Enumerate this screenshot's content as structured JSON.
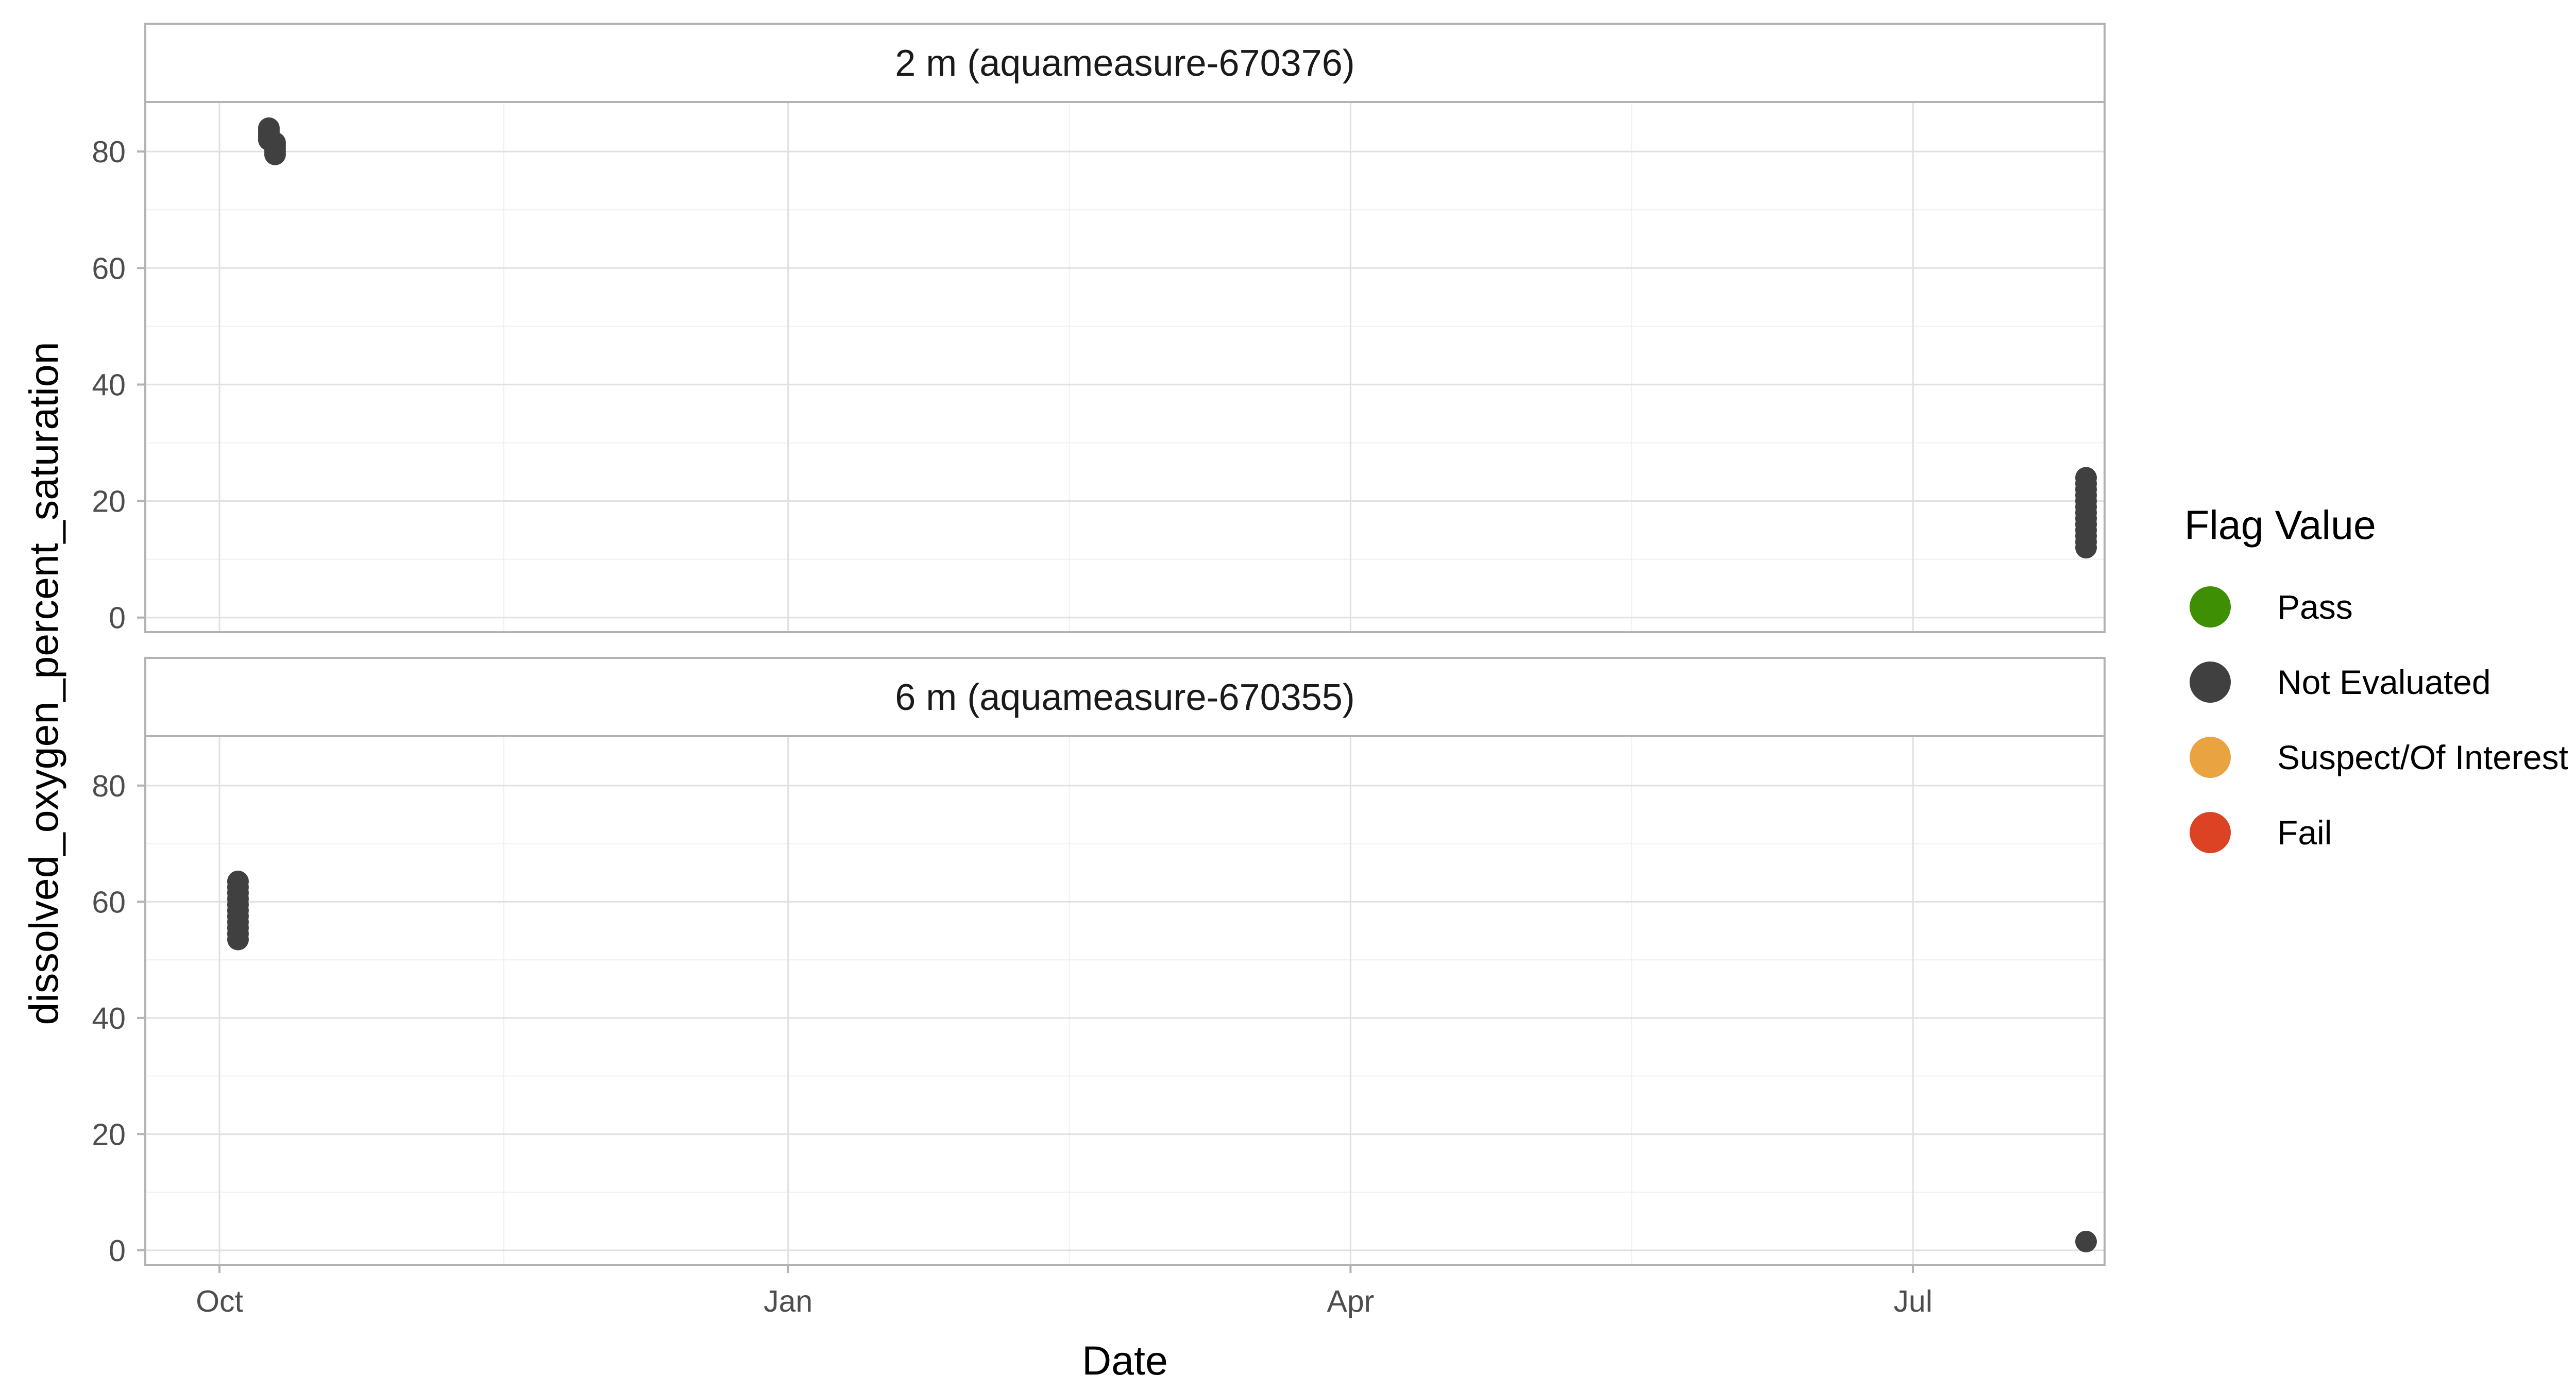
{
  "chart_data": {
    "type": "scatter",
    "xlabel": "Date",
    "ylabel": "dissolved_oxygen_percent_saturation",
    "x_ticks": [
      {
        "label": "Oct",
        "date": "2023-10-01"
      },
      {
        "label": "Jan",
        "date": "2024-01-01"
      },
      {
        "label": "Apr",
        "date": "2024-04-01"
      },
      {
        "label": "Jul",
        "date": "2024-07-01"
      }
    ],
    "xlim": [
      "2023-09-19",
      "2024-08-01"
    ],
    "y_ticks": [
      0,
      20,
      40,
      60,
      80
    ],
    "ylim": [
      -2.5,
      88.5
    ],
    "grid": true,
    "legend": {
      "title": "Flag Value",
      "placement": "right",
      "entries": [
        {
          "label": "Pass",
          "color": "#3f8f05"
        },
        {
          "label": "Not Evaluated",
          "color": "#404040"
        },
        {
          "label": "Suspect/Of Interest",
          "color": "#e9a441"
        },
        {
          "label": "Fail",
          "color": "#db4324"
        }
      ]
    },
    "panels": [
      {
        "label": "2 m (aquameasure-670376)",
        "series": [
          {
            "flag": "Not Evaluated",
            "color": "#404040",
            "points": [
              {
                "x": "2023-10-09",
                "y": 84
              },
              {
                "x": "2023-10-09",
                "y": 83.5
              },
              {
                "x": "2023-10-09",
                "y": 83
              },
              {
                "x": "2023-10-09",
                "y": 82.5
              },
              {
                "x": "2023-10-09",
                "y": 82
              },
              {
                "x": "2023-10-10",
                "y": 81.5
              },
              {
                "x": "2023-10-10",
                "y": 81
              },
              {
                "x": "2023-10-10",
                "y": 80.5
              },
              {
                "x": "2023-10-10",
                "y": 80
              },
              {
                "x": "2023-10-10",
                "y": 79.5
              },
              {
                "x": "2024-07-29",
                "y": 24
              },
              {
                "x": "2024-07-29",
                "y": 23
              },
              {
                "x": "2024-07-29",
                "y": 22
              },
              {
                "x": "2024-07-29",
                "y": 21
              },
              {
                "x": "2024-07-29",
                "y": 20
              },
              {
                "x": "2024-07-29",
                "y": 19
              },
              {
                "x": "2024-07-29",
                "y": 18
              },
              {
                "x": "2024-07-29",
                "y": 17
              },
              {
                "x": "2024-07-29",
                "y": 16
              },
              {
                "x": "2024-07-29",
                "y": 15
              },
              {
                "x": "2024-07-29",
                "y": 14
              },
              {
                "x": "2024-07-29",
                "y": 13
              },
              {
                "x": "2024-07-29",
                "y": 12
              }
            ]
          }
        ]
      },
      {
        "label": "6 m (aquameasure-670355)",
        "series": [
          {
            "flag": "Not Evaluated",
            "color": "#404040",
            "points": [
              {
                "x": "2023-10-04",
                "y": 63.5
              },
              {
                "x": "2023-10-04",
                "y": 62.5
              },
              {
                "x": "2023-10-04",
                "y": 61.5
              },
              {
                "x": "2023-10-04",
                "y": 60.5
              },
              {
                "x": "2023-10-04",
                "y": 59.5
              },
              {
                "x": "2023-10-04",
                "y": 58.5
              },
              {
                "x": "2023-10-04",
                "y": 57.5
              },
              {
                "x": "2023-10-04",
                "y": 56.5
              },
              {
                "x": "2023-10-04",
                "y": 55.5
              },
              {
                "x": "2023-10-04",
                "y": 54.5
              },
              {
                "x": "2023-10-04",
                "y": 53.5
              },
              {
                "x": "2024-07-29",
                "y": 1.5
              }
            ]
          }
        ]
      }
    ]
  }
}
